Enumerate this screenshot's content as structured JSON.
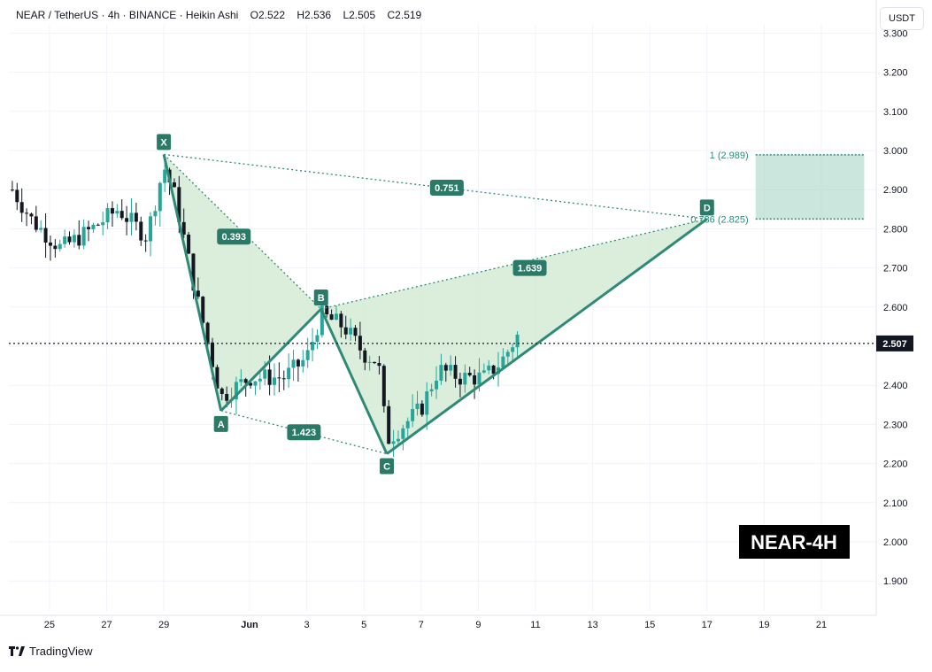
{
  "header": {
    "symbol": "NEAR / TetherUS",
    "interval": "4h",
    "exchange": "BINANCE",
    "chart_style": "Heikin Ashi",
    "open": "O2.522",
    "high": "H2.536",
    "low": "L2.505",
    "close": "C2.519"
  },
  "currency_button": "USDT",
  "brand": "TradingView",
  "watermark": "NEAR-4H",
  "current_price_label": "2.507",
  "colors": {
    "pattern_line": "#2e8a77",
    "pattern_fill": "#cfe8cf",
    "zone_fill": "#a8d5c6",
    "label_bg": "#2b7a67",
    "bull": "#26a69a",
    "bear": "#131722",
    "grid": "#f0f3fa"
  },
  "chart_data": {
    "type": "candlestick_harmonic",
    "ylim": [
      1.84,
      3.32
    ],
    "xlabel": "",
    "ylabel": "",
    "y_ticks": [
      3.3,
      3.2,
      3.1,
      3.0,
      2.9,
      2.8,
      2.7,
      2.6,
      2.5,
      2.4,
      2.3,
      2.2,
      2.1,
      2.0,
      1.9
    ],
    "y_tick_labels": [
      "3.300",
      "3.200",
      "3.100",
      "3.000",
      "2.900",
      "2.800",
      "2.700",
      "2.600",
      "2.500",
      "2.400",
      "2.300",
      "2.200",
      "2.100",
      "2.000",
      "1.900"
    ],
    "x_tick_labels": [
      "25",
      "27",
      "29",
      "Jun",
      "3",
      "5",
      "7",
      "9",
      "11",
      "13",
      "15",
      "17",
      "19",
      "21"
    ],
    "x_tick_days": [
      -7,
      -5,
      -3,
      0,
      2,
      4,
      6,
      8,
      10,
      12,
      14,
      16,
      18,
      20
    ],
    "last_price": 2.507,
    "pattern_points": [
      {
        "label": "X",
        "day": -3.0,
        "price": 2.99
      },
      {
        "label": "A",
        "day": -1.0,
        "price": 2.335
      },
      {
        "label": "B",
        "day": 2.5,
        "price": 2.595
      },
      {
        "label": "C",
        "day": 4.8,
        "price": 2.225
      },
      {
        "label": "D",
        "day": 16.0,
        "price": 2.825
      }
    ],
    "ratios": [
      {
        "value": "0.393",
        "day": -0.55,
        "price": 2.78
      },
      {
        "value": "1.423",
        "day": 1.9,
        "price": 2.28
      },
      {
        "value": "1.639",
        "day": 9.8,
        "price": 2.7
      },
      {
        "value": "0.751",
        "day": 6.9,
        "price": 2.905
      }
    ],
    "target_zone": {
      "upper": 2.989,
      "lower": 2.825,
      "upper_label": "1 (2.989)",
      "lower_label": "0.786 (2.825)"
    },
    "candles_visible": true
  }
}
